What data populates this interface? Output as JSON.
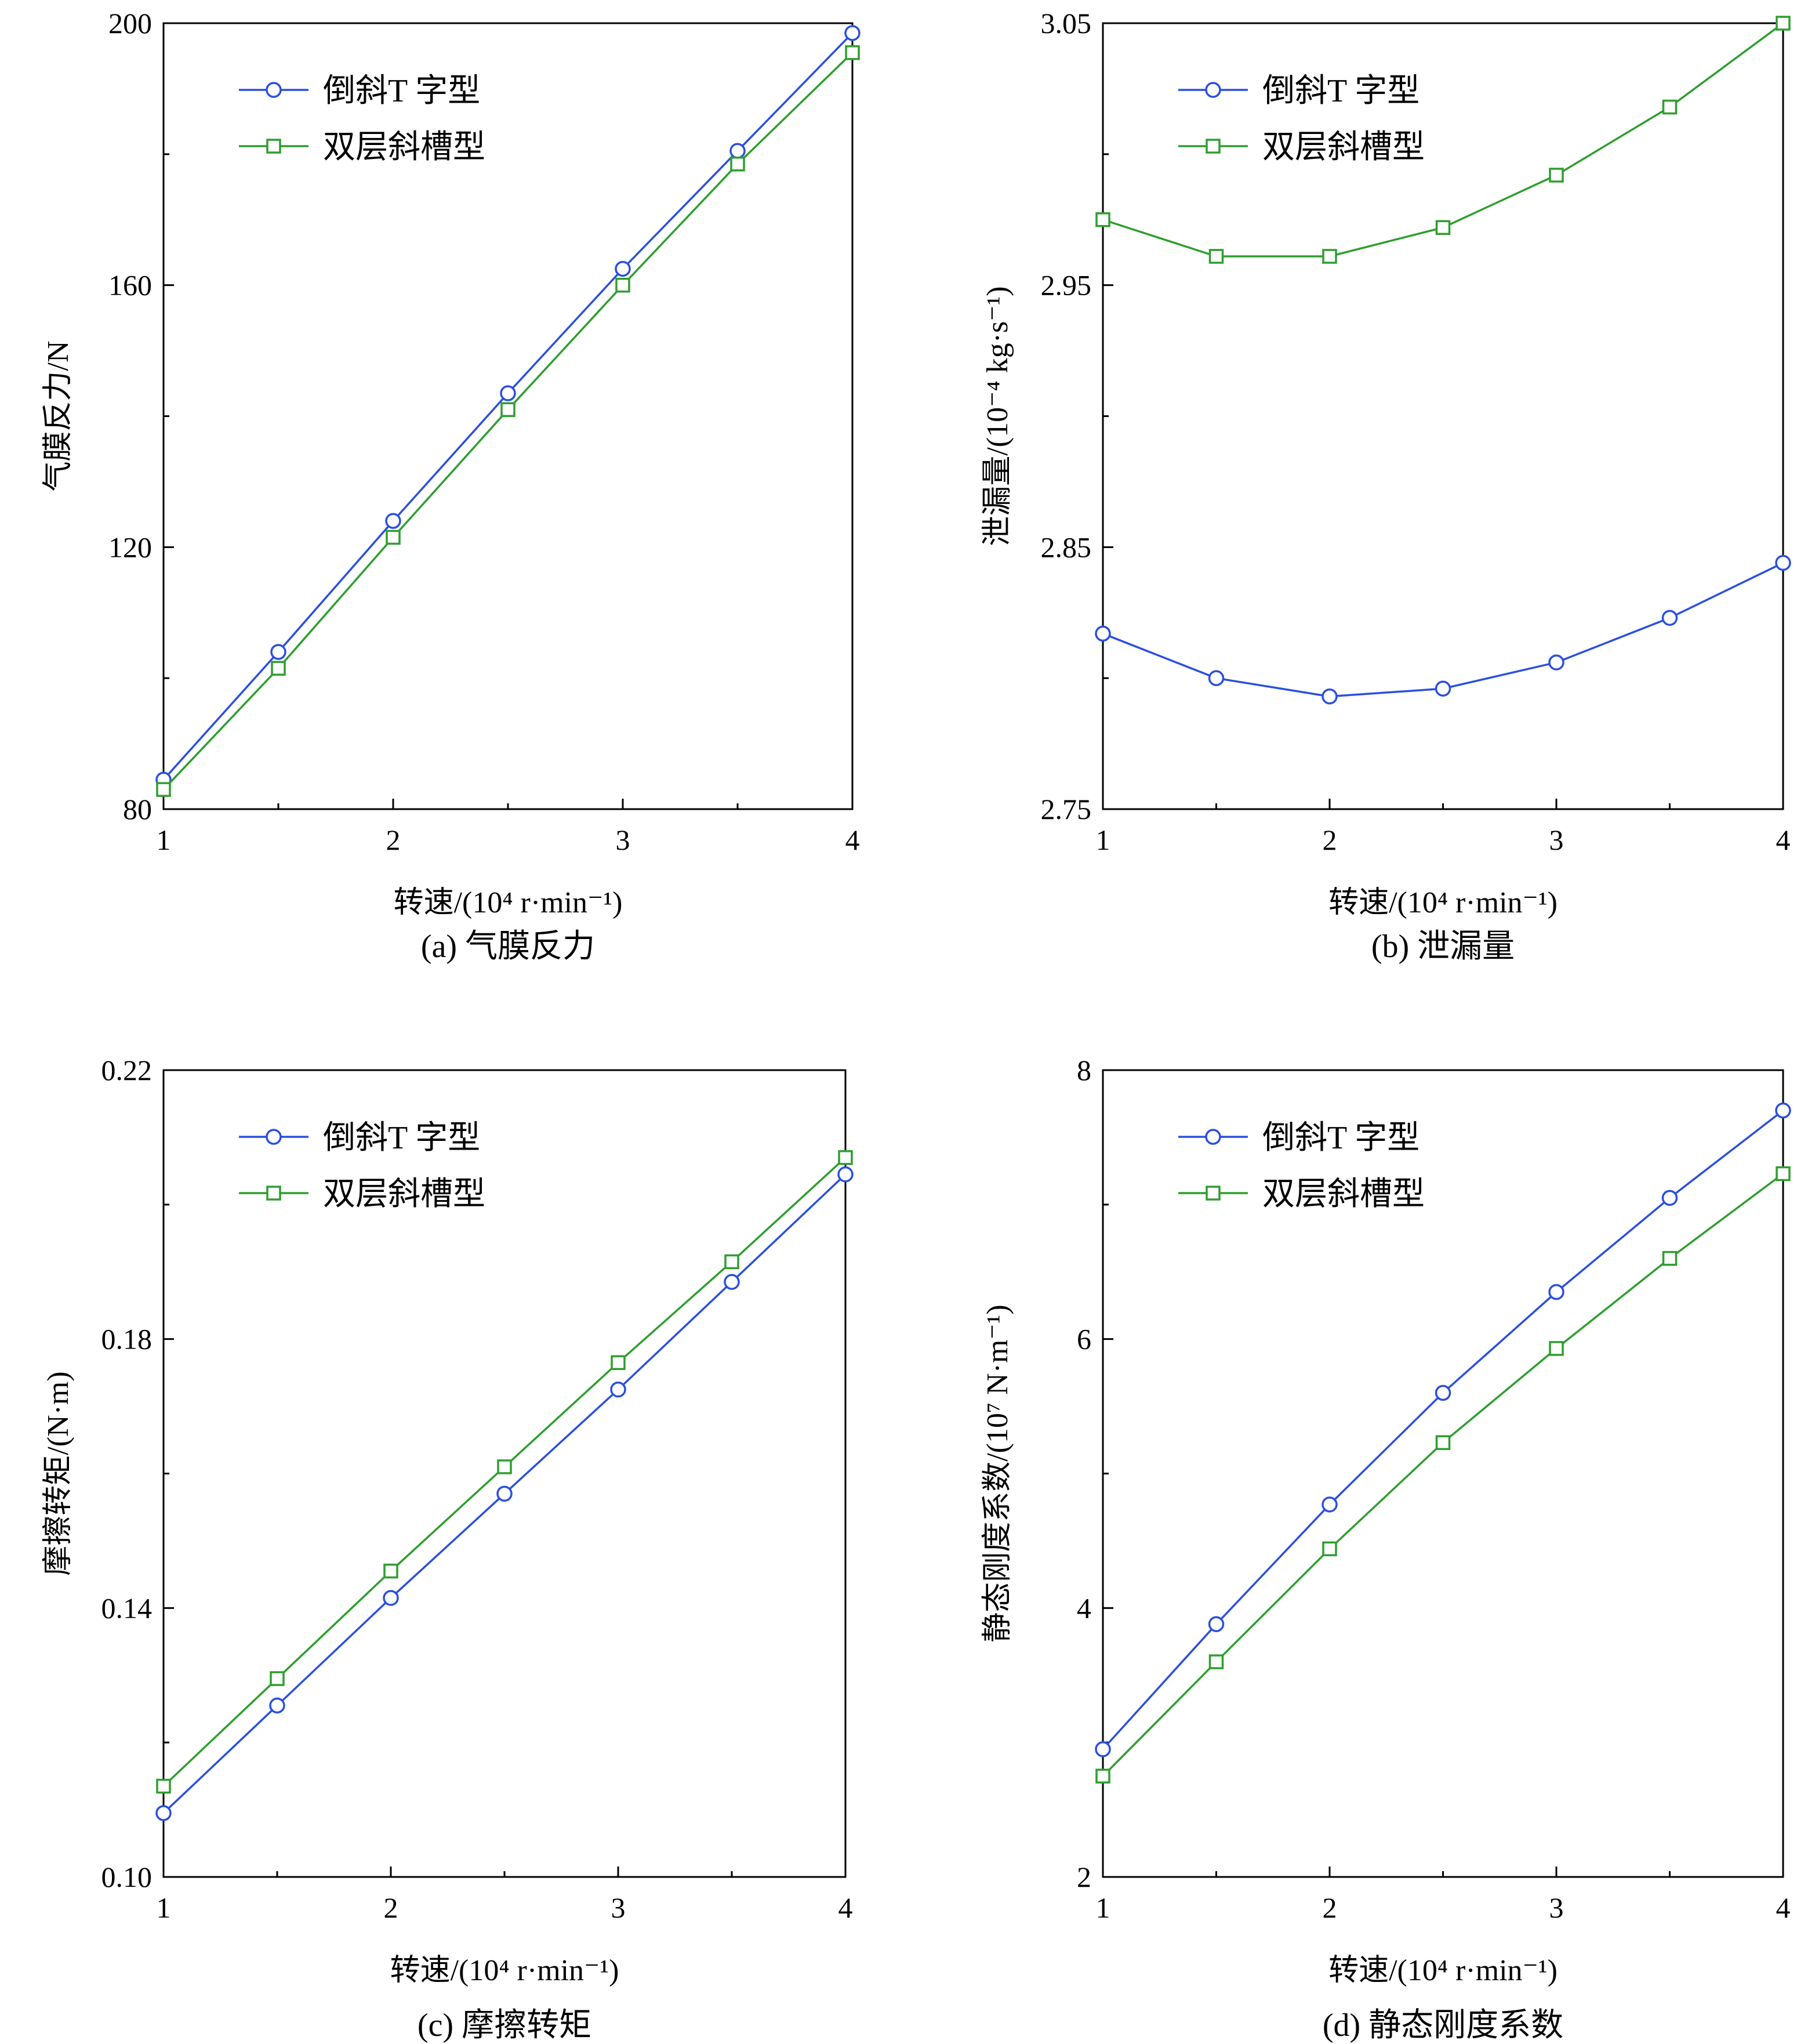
{
  "colors": {
    "series_a": "#2b4fe0",
    "series_b": "#2e9e2e",
    "axis": "#000000"
  },
  "chart_data": [
    {
      "id": "a",
      "type": "line",
      "caption": "(a) 气膜反力",
      "xlabel": "转速/(10⁴ r·min⁻¹)",
      "ylabel": "气膜反力/N",
      "x": [
        1,
        1.5,
        2,
        2.5,
        3,
        3.5,
        4
      ],
      "xlim": [
        1,
        4
      ],
      "xticks": [
        1,
        2,
        3,
        4
      ],
      "xtick_labels": [
        "1",
        "2",
        "3",
        "4"
      ],
      "ylim": [
        80,
        200
      ],
      "yticks": [
        80,
        120,
        160,
        200
      ],
      "ytick_labels": [
        "80",
        "120",
        "160",
        "200"
      ],
      "legend_position": "top-left",
      "series": [
        {
          "name": "倒斜T 字型",
          "marker": "circle",
          "values": [
            84.5,
            104,
            124,
            143.5,
            162.5,
            180.5,
            198.5
          ]
        },
        {
          "name": "双层斜槽型",
          "marker": "square",
          "values": [
            83,
            101.5,
            121.5,
            141,
            160,
            178.5,
            195.5
          ]
        }
      ]
    },
    {
      "id": "b",
      "type": "line",
      "caption": "(b) 泄漏量",
      "xlabel": "转速/(10⁴ r·min⁻¹)",
      "ylabel": "泄漏量/(10⁻⁴ kg·s⁻¹)",
      "x": [
        1,
        1.5,
        2,
        2.5,
        3,
        3.5,
        4
      ],
      "xlim": [
        1,
        4
      ],
      "xticks": [
        1,
        2,
        3,
        4
      ],
      "xtick_labels": [
        "1",
        "2",
        "3",
        "4"
      ],
      "ylim": [
        2.75,
        3.05
      ],
      "yticks": [
        2.75,
        2.85,
        2.95,
        3.05
      ],
      "ytick_labels": [
        "2.75",
        "2.85",
        "2.95",
        "3.05"
      ],
      "legend_position": "top-left",
      "series": [
        {
          "name": "倒斜T 字型",
          "marker": "circle",
          "values": [
            2.817,
            2.8,
            2.793,
            2.796,
            2.806,
            2.823,
            2.844
          ]
        },
        {
          "name": "双层斜槽型",
          "marker": "square",
          "values": [
            2.975,
            2.961,
            2.961,
            2.972,
            2.992,
            3.018,
            3.05
          ]
        }
      ]
    },
    {
      "id": "c",
      "type": "line",
      "caption": "(c) 摩擦转矩",
      "xlabel": "转速/(10⁴ r·min⁻¹)",
      "ylabel": "摩擦转矩/(N·m)",
      "x": [
        1,
        1.5,
        2,
        2.5,
        3,
        3.5,
        4
      ],
      "xlim": [
        1,
        4
      ],
      "xticks": [
        1,
        2,
        3,
        4
      ],
      "xtick_labels": [
        "1",
        "2",
        "3",
        "4"
      ],
      "ylim": [
        0.1,
        0.22
      ],
      "yticks": [
        0.1,
        0.14,
        0.18,
        0.22
      ],
      "ytick_labels": [
        "0.10",
        "0.14",
        "0.18",
        "0.22"
      ],
      "legend_position": "top-left",
      "series": [
        {
          "name": "倒斜T 字型",
          "marker": "circle",
          "values": [
            0.1095,
            0.1255,
            0.1415,
            0.157,
            0.1725,
            0.1885,
            0.2045
          ]
        },
        {
          "name": "双层斜槽型",
          "marker": "square",
          "values": [
            0.1135,
            0.1295,
            0.1455,
            0.161,
            0.1765,
            0.1915,
            0.207
          ]
        }
      ]
    },
    {
      "id": "d",
      "type": "line",
      "caption": "(d) 静态刚度系数",
      "xlabel": "转速/(10⁴ r·min⁻¹)",
      "ylabel": "静态刚度系数/(10⁷ N·m⁻¹)",
      "x": [
        1,
        1.5,
        2,
        2.5,
        3,
        3.5,
        4
      ],
      "xlim": [
        1,
        4
      ],
      "xticks": [
        1,
        2,
        3,
        4
      ],
      "xtick_labels": [
        "1",
        "2",
        "3",
        "4"
      ],
      "ylim": [
        2,
        8
      ],
      "yticks": [
        2,
        4,
        6,
        8
      ],
      "ytick_labels": [
        "2",
        "4",
        "6",
        "8"
      ],
      "legend_position": "top-left",
      "series": [
        {
          "name": "倒斜T 字型",
          "marker": "circle",
          "values": [
            2.95,
            3.88,
            4.77,
            5.6,
            6.35,
            7.05,
            7.7
          ]
        },
        {
          "name": "双层斜槽型",
          "marker": "square",
          "values": [
            2.75,
            3.6,
            4.44,
            5.23,
            5.93,
            6.6,
            7.23
          ]
        }
      ]
    }
  ]
}
